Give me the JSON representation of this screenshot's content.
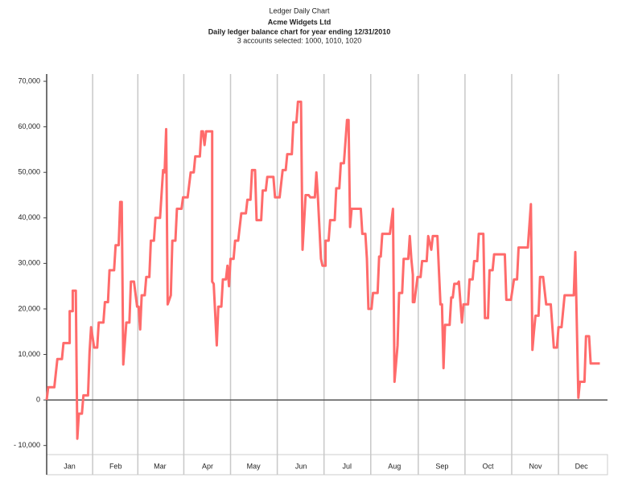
{
  "chart_data": {
    "type": "line",
    "title": "Ledger Daily Chart",
    "subtitle": "Acme Widgets Ltd",
    "subtitle2": "Daily ledger balance chart for year ending 12/31/2010",
    "note": "3 accounts selected: 1000, 1010, 1020",
    "color": "#ff6b6b",
    "x": [
      0,
      1,
      5,
      7,
      10,
      11,
      15,
      15,
      17,
      17,
      19,
      20,
      21,
      23,
      24,
      27,
      28,
      29,
      31,
      33,
      34,
      37,
      38,
      40,
      41,
      44,
      45,
      47,
      48,
      49,
      50,
      52,
      54,
      55,
      57,
      59,
      60,
      61,
      62,
      64,
      65,
      67,
      68,
      70,
      71,
      74,
      76,
      77,
      78,
      79,
      81,
      82,
      84,
      85,
      88,
      89,
      92,
      94,
      96,
      97,
      100,
      101,
      102,
      103,
      104,
      108,
      108,
      109,
      111,
      112,
      114,
      115,
      117,
      118,
      119,
      120,
      122,
      123,
      125,
      127,
      130,
      131,
      133,
      134,
      136,
      137,
      140,
      141,
      143,
      144,
      148,
      149,
      152,
      154,
      156,
      157,
      160,
      161,
      163,
      164,
      166,
      167,
      169,
      171,
      172,
      175,
      176,
      177,
      179,
      180,
      182,
      182,
      184,
      185,
      188,
      189,
      191,
      192,
      194,
      196,
      197,
      198,
      199,
      205,
      206,
      208,
      209,
      210,
      212,
      213,
      216,
      217,
      218,
      219,
      224,
      226,
      227,
      229,
      230,
      232,
      233,
      236,
      237,
      238,
      239,
      239,
      240,
      242,
      244,
      245,
      248,
      249,
      251,
      252,
      255,
      257,
      258,
      259,
      260,
      263,
      264,
      265,
      266,
      268,
      269,
      271,
      272,
      275,
      276,
      278,
      279,
      281,
      282,
      285,
      286,
      288,
      289,
      291,
      292,
      298,
      299,
      300,
      303,
      305,
      307,
      308,
      313,
      314,
      316,
      317,
      318,
      319,
      321,
      322,
      324,
      326,
      329,
      331,
      333,
      334,
      336,
      338,
      343,
      344,
      345,
      347,
      348,
      351,
      352,
      354,
      355,
      361
    ],
    "values": [
      0,
      2800,
      2800,
      9000,
      9000,
      12500,
      12500,
      19500,
      19500,
      24000,
      24000,
      -8500,
      -3000,
      -3000,
      1000,
      1000,
      10500,
      16000,
      11500,
      11500,
      17000,
      17000,
      21500,
      21500,
      28500,
      28500,
      34000,
      34000,
      43500,
      43500,
      7800,
      17000,
      17000,
      26000,
      26000,
      20500,
      20500,
      15500,
      23000,
      23000,
      27000,
      27000,
      35000,
      35000,
      40000,
      40000,
      50500,
      50000,
      59500,
      21000,
      23000,
      35000,
      35000,
      42000,
      42000,
      44500,
      44500,
      50000,
      50000,
      53500,
      53500,
      59000,
      59000,
      56000,
      59000,
      59000,
      26000,
      25500,
      12000,
      20500,
      20500,
      26500,
      26500,
      29500,
      25000,
      31000,
      31000,
      35000,
      35000,
      41000,
      41000,
      44000,
      44000,
      50500,
      50500,
      39500,
      39500,
      46000,
      46000,
      49000,
      49000,
      44500,
      44500,
      50500,
      50500,
      54000,
      54000,
      61000,
      61000,
      65500,
      65500,
      33000,
      45000,
      45000,
      44500,
      44500,
      50000,
      44500,
      31000,
      29500,
      29500,
      35000,
      35000,
      39500,
      39500,
      46500,
      46500,
      52000,
      52000,
      61500,
      61500,
      38000,
      42000,
      42000,
      36500,
      36500,
      31000,
      20000,
      20000,
      23500,
      23500,
      31500,
      31500,
      36500,
      36500,
      42000,
      4000,
      12000,
      23500,
      23500,
      31000,
      31000,
      36000,
      31000,
      27500,
      21500,
      21500,
      27000,
      27000,
      30500,
      30500,
      36000,
      33000,
      36000,
      36000,
      21000,
      21000,
      7000,
      16500,
      16500,
      22500,
      22500,
      25500,
      25500,
      26000,
      17000,
      21000,
      21000,
      26500,
      26500,
      30500,
      30500,
      36500,
      36500,
      18000,
      18000,
      28500,
      28500,
      32000,
      32000,
      32000,
      22000,
      22000,
      26500,
      26500,
      33500,
      33500,
      33500,
      43000,
      11000,
      15000,
      18500,
      18500,
      27000,
      27000,
      21000,
      21000,
      11500,
      11500,
      16000,
      16000,
      23000,
      23000,
      23000,
      32500,
      500,
      4000,
      4000,
      14000,
      14000,
      8000,
      8000
    ],
    "xlim": [
      0,
      366
    ],
    "xticks": [
      {
        "value": 15,
        "label": "Jan"
      },
      {
        "value": 45,
        "label": "Feb"
      },
      {
        "value": 74,
        "label": "Mar"
      },
      {
        "value": 105,
        "label": "Apr"
      },
      {
        "value": 135,
        "label": "May"
      },
      {
        "value": 166,
        "label": "Jun"
      },
      {
        "value": 196,
        "label": "Jul"
      },
      {
        "value": 227,
        "label": "Aug"
      },
      {
        "value": 258,
        "label": "Sep"
      },
      {
        "value": 288,
        "label": "Oct"
      },
      {
        "value": 319,
        "label": "Nov"
      },
      {
        "value": 349,
        "label": "Dec"
      }
    ],
    "ylim": [
      -12000,
      71600
    ],
    "yticks": [
      {
        "value": -10000,
        "label": "- 10,000"
      },
      0,
      {
        "value": 10000,
        "label": "10,000"
      },
      {
        "value": 20000,
        "label": "20,000"
      },
      {
        "value": 30000,
        "label": "30,000"
      },
      {
        "value": 40000,
        "label": "40,000"
      },
      {
        "value": 50000,
        "label": "50,000"
      },
      {
        "value": 60000,
        "label": "60,000"
      },
      {
        "value": 70000,
        "label": "70,000"
      }
    ]
  }
}
